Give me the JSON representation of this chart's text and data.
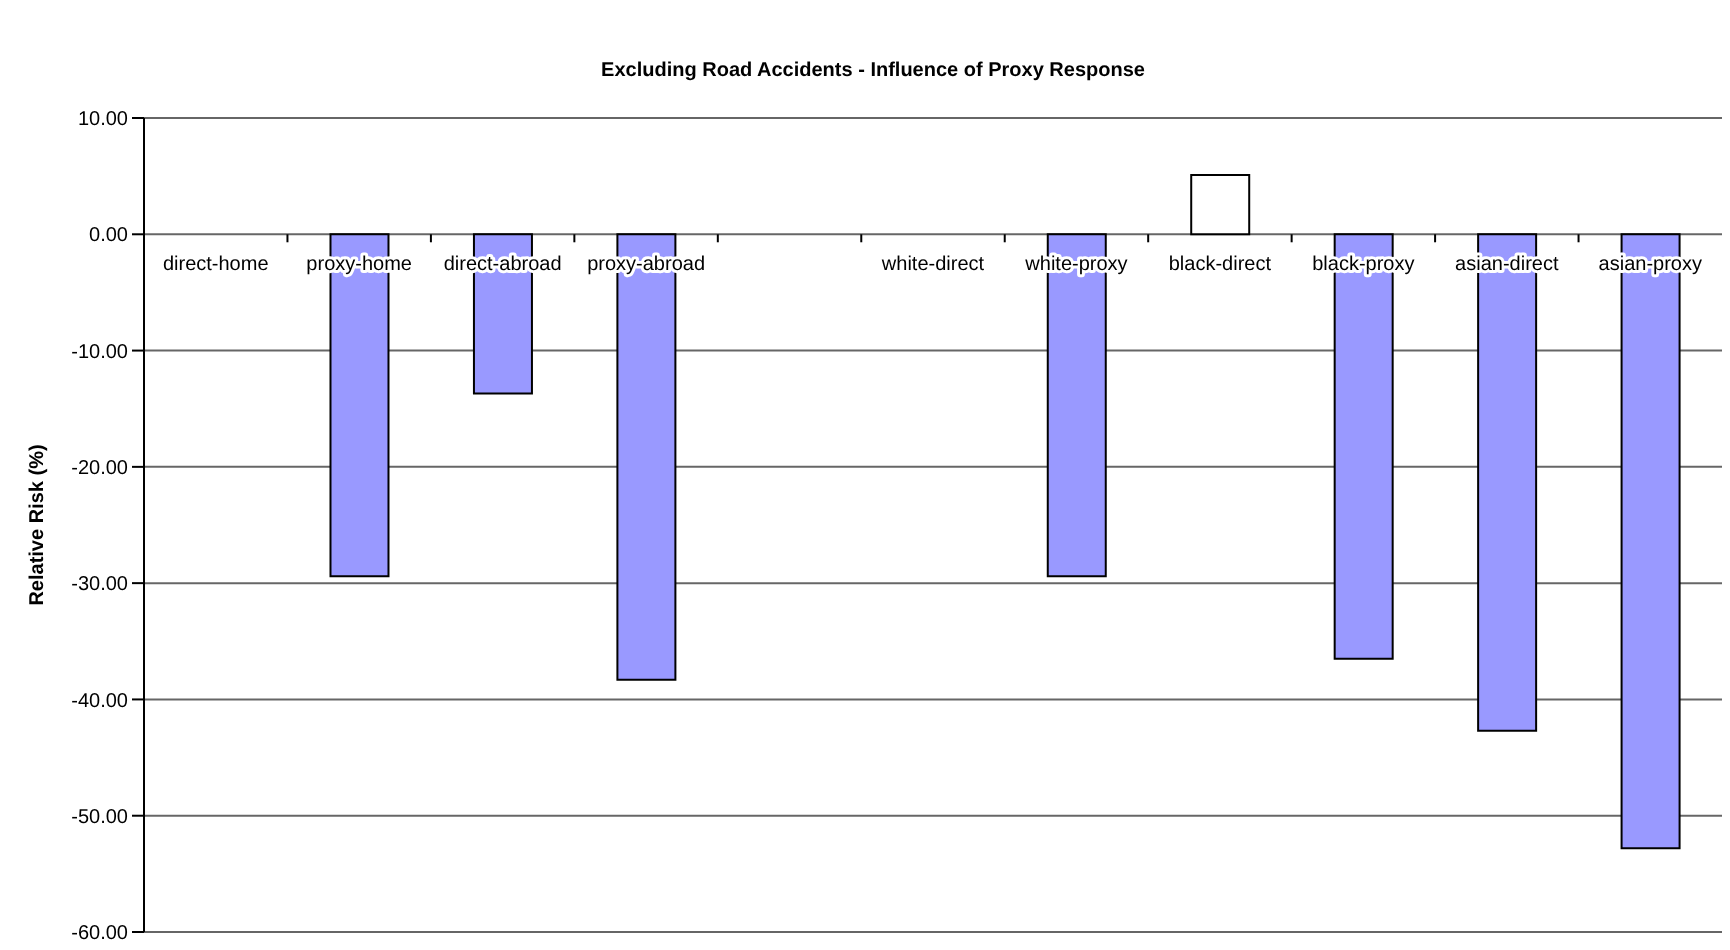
{
  "chart_data": {
    "type": "bar",
    "title": "Excluding Road Accidents - Influence of Proxy Response",
    "ylabel": "Relative Risk (%)",
    "categories": [
      "direct-home",
      "proxy-home",
      "direct-abroad",
      "proxy-abroad",
      null,
      "white-direct",
      "white-proxy",
      "black-direct",
      "black-proxy",
      "asian-direct",
      "asian-proxy"
    ],
    "values": [
      null,
      -29.4,
      -13.7,
      -38.3,
      null,
      null,
      -29.4,
      5.1,
      -36.5,
      -42.7,
      -52.8
    ],
    "colors": [
      "#9999ff",
      "#9999ff",
      "#9999ff",
      "#9999ff",
      "#9999ff",
      "#9999ff",
      "#9999ff",
      "#ffffff",
      "#9999ff",
      "#9999ff",
      "#9999ff"
    ],
    "ylim": [
      -60,
      10
    ],
    "yticks": [
      {
        "value": -60,
        "label": "-60.00"
      },
      {
        "value": -50,
        "label": "-50.00"
      },
      {
        "value": -40,
        "label": "-40.00"
      },
      {
        "value": -30,
        "label": "-30.00"
      },
      {
        "value": -20,
        "label": "-20.00"
      },
      {
        "value": -10,
        "label": "-10.00"
      },
      {
        "value": 0,
        "label": "0.00"
      },
      {
        "value": 10,
        "label": "10.00"
      }
    ],
    "grid": "y",
    "legend": false
  }
}
